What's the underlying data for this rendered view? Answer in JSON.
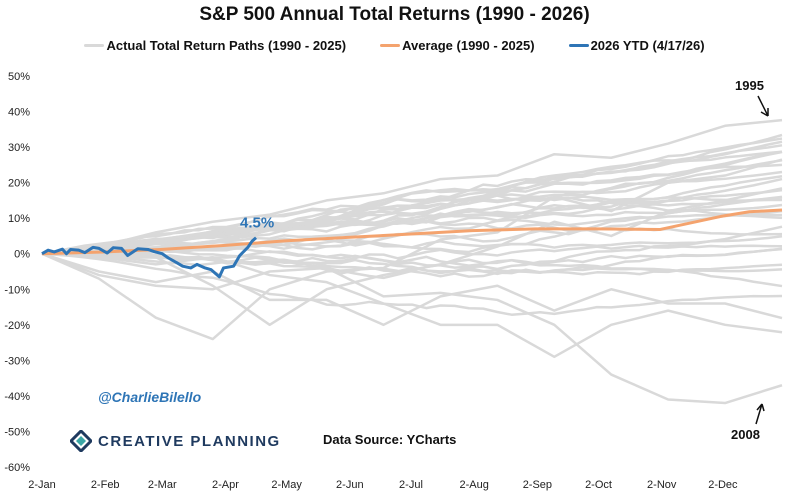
{
  "chart_data": {
    "type": "line",
    "title": "S&P 500 Annual Total Returns (1990 - 2026)",
    "x_ticks": [
      "2-Jan",
      "2-Feb",
      "2-Mar",
      "2-Apr",
      "2-May",
      "2-Jun",
      "2-Jul",
      "2-Aug",
      "2-Sep",
      "2-Oct",
      "2-Nov",
      "2-Dec"
    ],
    "y_ticks": [
      "50%",
      "40%",
      "30%",
      "20%",
      "10%",
      "0%",
      "-10%",
      "-20%",
      "-30%",
      "-40%",
      "-50%",
      "-60%"
    ],
    "ylim": [
      -60,
      50
    ],
    "grid": false,
    "legend_position": "top",
    "legend": [
      {
        "label": "Actual Total Return Paths (1990 - 2025)",
        "color": "#d9d9d9"
      },
      {
        "label": "Average (1990 - 2025)",
        "color": "#f4a36e"
      },
      {
        "label": "2026 YTD (4/17/26)",
        "color": "#2e75b6"
      }
    ],
    "historical_year_end_returns": {
      "1990": -3.1,
      "1991": 30.5,
      "1992": 7.6,
      "1993": 10.1,
      "1994": 1.3,
      "1995": 37.6,
      "1996": 23.0,
      "1997": 33.4,
      "1998": 28.6,
      "1999": 21.0,
      "2000": -9.1,
      "2001": -11.9,
      "2002": -22.1,
      "2003": 28.7,
      "2004": 10.9,
      "2005": 4.9,
      "2006": 15.8,
      "2007": 5.5,
      "2008": -37.0,
      "2009": 26.5,
      "2010": 15.1,
      "2011": 2.1,
      "2012": 16.0,
      "2013": 32.4,
      "2014": 13.7,
      "2015": 1.4,
      "2016": 12.0,
      "2017": 21.8,
      "2018": -4.4,
      "2019": 31.5,
      "2020": 18.4,
      "2021": 28.7,
      "2022": -18.1,
      "2023": 26.3,
      "2024": 25.0,
      "2025": 17.9
    },
    "historical_monthly_paths": {
      "2008": [
        0,
        -6,
        -9,
        -10,
        -5,
        -4,
        -12,
        -11,
        -13,
        -20,
        -34,
        -41,
        -42,
        -37
      ],
      "2020": [
        0,
        0,
        -1,
        -9,
        -20,
        -10,
        -6,
        -3,
        2,
        9,
        5,
        12,
        15,
        18.4
      ],
      "2022": [
        0,
        -5,
        -8,
        -5,
        -13,
        -13,
        -20,
        -12,
        -9,
        -16,
        -10,
        -14,
        -14,
        -18.1
      ],
      "2002": [
        0,
        -1,
        -3,
        -1,
        -6,
        -8,
        -14,
        -20,
        -20,
        -29,
        -20,
        -16,
        -20,
        -22.1
      ],
      "2009": [
        0,
        -7,
        -18,
        -24,
        -10,
        -5,
        -4,
        4,
        6,
        16,
        12,
        20,
        22,
        26.5
      ],
      "1995": [
        0,
        2,
        6,
        9,
        11,
        15,
        17,
        21,
        22,
        28,
        27,
        31,
        36,
        37.6
      ]
    },
    "average": {
      "x": [
        "01-02",
        "02-01",
        "03-01",
        "04-01",
        "05-01",
        "06-01",
        "07-01",
        "08-01",
        "09-01",
        "10-01",
        "11-01",
        "12-01",
        "12-15",
        "12-31"
      ],
      "y": [
        0,
        0.5,
        1.2,
        2.3,
        3.6,
        4.6,
        5.5,
        6.5,
        7,
        7,
        6.8,
        10.5,
        11.8,
        12.3
      ]
    },
    "ytd_2026": {
      "x": [
        "01-02",
        "01-05",
        "01-08",
        "01-12",
        "01-14",
        "01-16",
        "01-20",
        "01-23",
        "01-27",
        "01-30",
        "02-03",
        "02-06",
        "02-10",
        "02-13",
        "02-18",
        "02-23",
        "02-26",
        "03-02",
        "03-05",
        "03-09",
        "03-12",
        "03-16",
        "03-19",
        "03-23",
        "03-26",
        "03-30",
        "04-01",
        "04-06",
        "04-09",
        "04-13",
        "04-15",
        "04-17"
      ],
      "y": [
        0,
        1,
        0.5,
        1.3,
        0,
        1.2,
        1,
        0.3,
        1.8,
        1.5,
        0.2,
        1.7,
        1.5,
        -0.5,
        1.4,
        1.2,
        0.6,
        0,
        -1.2,
        -2.5,
        -3.5,
        -4,
        -3,
        -4,
        -4.5,
        -6.5,
        -4,
        -3.5,
        -0.5,
        1.8,
        3.5,
        4.5
      ]
    },
    "data_label": "4.5%"
  },
  "annotations": {
    "y1995": "1995",
    "y2008": "2008"
  },
  "footer": {
    "handle": "@CharlieBilello",
    "logo": "CREATIVE PLANNING",
    "source": "Data Source: YCharts"
  }
}
